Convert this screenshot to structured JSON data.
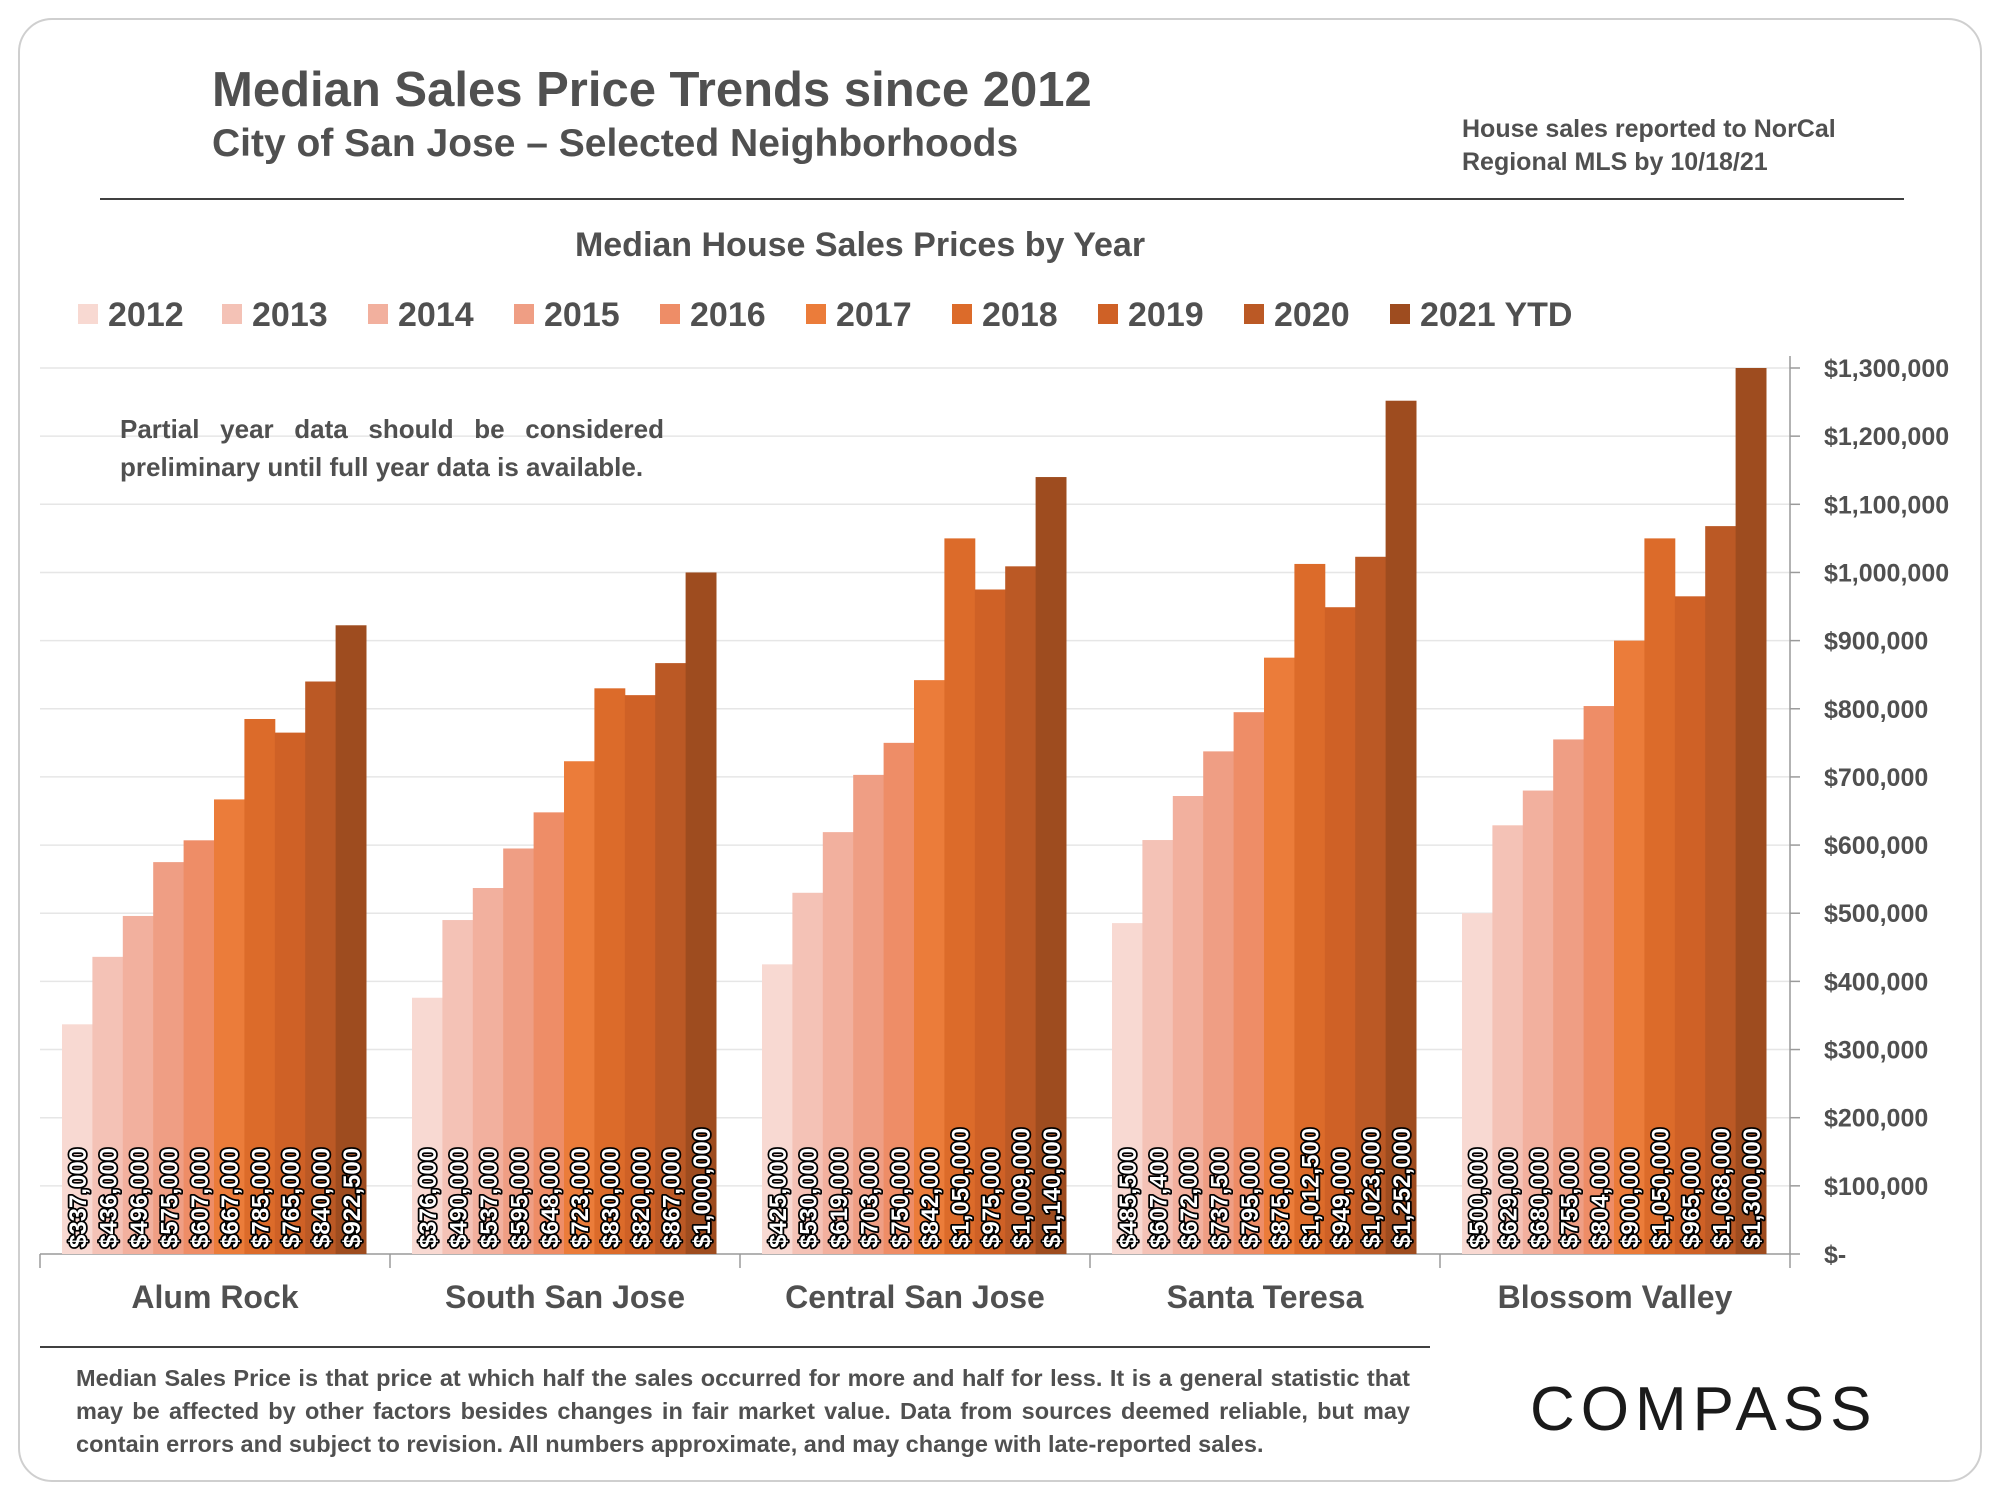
{
  "header": {
    "title": "Median Sales Price Trends since 2012",
    "subtitle": "City of San Jose – Selected Neighborhoods",
    "source_line1": "House sales reported to NorCal",
    "source_line2": "Regional MLS by 10/18/21"
  },
  "note": "Partial year data should be considered preliminary until full year data is available.",
  "footer": "Median Sales Price is that price at which half the sales occurred for more and half for less. It is a general statistic that may be affected by other factors besides changes in fair market value. Data from sources deemed reliable, but may contain errors and subject to revision.  All numbers approximate, and may change with late-reported sales.",
  "logo": "COMPASS",
  "colors": {
    "2012": "#f8d9d2",
    "2013": "#f4c2b6",
    "2014": "#f2b09e",
    "2015": "#ef9e84",
    "2016": "#ee8d67",
    "2017": "#eb7c3a",
    "2018": "#dc6b2a",
    "2019": "#cf6126",
    "2020": "#bb5925",
    "2021 YTD": "#9e4c1f"
  },
  "chart_data": {
    "type": "bar",
    "title": "Median House Sales Prices by Year",
    "categories": [
      "Alum Rock",
      "South San Jose",
      "Central San Jose",
      "Santa Teresa",
      "Blossom Valley"
    ],
    "series": [
      {
        "name": "2012",
        "values": [
          337000,
          376000,
          425000,
          485500,
          500000
        ],
        "labels": [
          "$337,000",
          "$376,000",
          "$425,000",
          "$485,500",
          "$500,000"
        ]
      },
      {
        "name": "2013",
        "values": [
          436000,
          490000,
          530000,
          607400,
          629000
        ],
        "labels": [
          "$436,000",
          "$490,000",
          "$530,000",
          "$607,400",
          "$629,000"
        ]
      },
      {
        "name": "2014",
        "values": [
          496000,
          537000,
          619000,
          672000,
          680000
        ],
        "labels": [
          "$496,000",
          "$537,000",
          "$619,000",
          "$672,000",
          "$680,000"
        ]
      },
      {
        "name": "2015",
        "values": [
          575000,
          595000,
          703000,
          737500,
          755000
        ],
        "labels": [
          "$575,000",
          "$595,000",
          "$703,000",
          "$737,500",
          "$755,000"
        ]
      },
      {
        "name": "2016",
        "values": [
          607000,
          648000,
          750000,
          795000,
          804000
        ],
        "labels": [
          "$607,000",
          "$648,000",
          "$750,000",
          "$795,000",
          "$804,000"
        ]
      },
      {
        "name": "2017",
        "values": [
          667000,
          723000,
          842000,
          875000,
          900000
        ],
        "labels": [
          "$667,000",
          "$723,000",
          "$842,000",
          "$875,000",
          "$900,000"
        ]
      },
      {
        "name": "2018",
        "values": [
          785000,
          830000,
          1050000,
          1012500,
          1050000
        ],
        "labels": [
          "$785,000",
          "$830,000",
          "$1,050,000",
          "$1,012,500",
          "$1,050,000"
        ]
      },
      {
        "name": "2019",
        "values": [
          765000,
          820000,
          975000,
          949000,
          965000
        ],
        "labels": [
          "$765,000",
          "$820,000",
          "$975,000",
          "$949,000",
          "$965,000"
        ]
      },
      {
        "name": "2020",
        "values": [
          840000,
          867000,
          1009000,
          1023000,
          1068000
        ],
        "labels": [
          "$840,000",
          "$867,000",
          "$1,009,000",
          "$1,023,000",
          "$1,068,000"
        ]
      },
      {
        "name": "2021 YTD",
        "values": [
          922500,
          1000000,
          1140000,
          1252000,
          1300000
        ],
        "labels": [
          "$922,500",
          "$1,000,000",
          "$1,140,000",
          "$1,252,000",
          "$1,300,000"
        ]
      }
    ],
    "ylim": [
      0,
      1300000
    ],
    "yticks": [
      0,
      100000,
      200000,
      300000,
      400000,
      500000,
      600000,
      700000,
      800000,
      900000,
      1000000,
      1100000,
      1200000,
      1300000
    ],
    "ytick_labels": [
      "$-",
      "$100,000",
      "$200,000",
      "$300,000",
      "$400,000",
      "$500,000",
      "$600,000",
      "$700,000",
      "$800,000",
      "$900,000",
      "$1,000,000",
      "$1,100,000",
      "$1,200,000",
      "$1,300,000"
    ],
    "y_axis_side": "right",
    "grid": true,
    "legend": "top"
  }
}
